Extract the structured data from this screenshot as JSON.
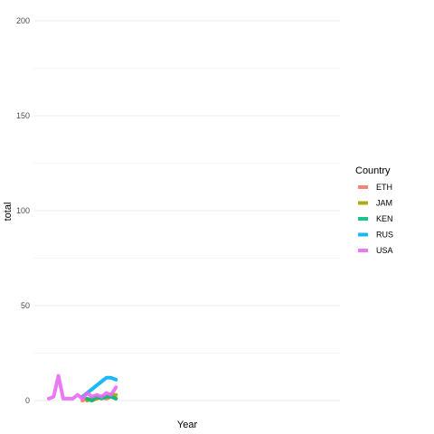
{
  "chart_data": {
    "type": "line",
    "title": "",
    "xlabel": "Year",
    "ylabel": "total",
    "ylim": [
      0,
      200
    ],
    "y_ticks": [
      0,
      50,
      100,
      150,
      200
    ],
    "x_tick_labels": [],
    "x_range": [
      0,
      40
    ],
    "grid": true,
    "legend": {
      "title": "Country",
      "placement": "right"
    },
    "series": [
      {
        "name": "ETH",
        "color": "#F8766D",
        "x": [
          7,
          8,
          9,
          10,
          11,
          12,
          13,
          14
        ],
        "y": [
          0,
          1,
          0,
          1,
          2,
          1,
          2,
          1
        ]
      },
      {
        "name": "JAM",
        "color": "#A3A500",
        "x": [
          8,
          9,
          10,
          11,
          12,
          13,
          14
        ],
        "y": [
          0,
          1,
          1,
          2,
          2,
          3,
          3
        ]
      },
      {
        "name": "KEN",
        "color": "#00BF7D",
        "x": [
          8,
          9,
          10,
          11,
          12,
          13,
          14
        ],
        "y": [
          1,
          0,
          2,
          1,
          2,
          2,
          1
        ]
      },
      {
        "name": "RUS",
        "color": "#00B0F6",
        "x": [
          7,
          8,
          9,
          10,
          11,
          12,
          13,
          14
        ],
        "y": [
          2,
          4,
          6,
          8,
          10,
          12,
          12,
          11
        ]
      },
      {
        "name": "USA",
        "color": "#E76BF3",
        "x": [
          0,
          1,
          2,
          3,
          4,
          5,
          6,
          7,
          8,
          9,
          10,
          11,
          12,
          13,
          14
        ],
        "y": [
          1,
          2,
          13,
          1,
          1,
          1,
          3,
          1,
          4,
          2,
          3,
          2,
          4,
          3,
          7
        ]
      }
    ]
  }
}
